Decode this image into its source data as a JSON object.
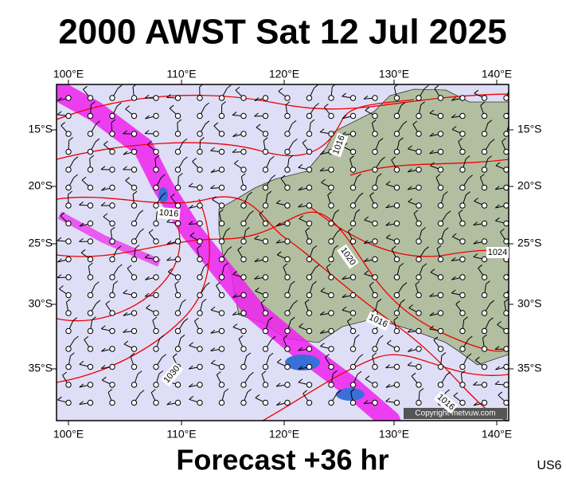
{
  "header": {
    "title": "2000 AWST Sat 12 Jul 2025"
  },
  "axes": {
    "top_lon": [
      "100°E",
      "110°E",
      "120°E",
      "130°E",
      "140°E"
    ],
    "bottom_lon": [
      "100°E",
      "110°E",
      "120°E",
      "130°E",
      "140°E"
    ],
    "left_lat": [
      "15°S",
      "20°S",
      "25°S",
      "30°S",
      "35°S"
    ],
    "right_lat": [
      "15°S",
      "20°S",
      "25°S",
      "30°S",
      "35°S"
    ]
  },
  "isobar_labels": [
    "1016",
    "1016",
    "1020",
    "1016",
    "1024",
    "1030",
    "1016"
  ],
  "copyright": "Copyright metvuw.com",
  "footer": {
    "forecast": "Forecast +36 hr",
    "code": "US6"
  }
}
